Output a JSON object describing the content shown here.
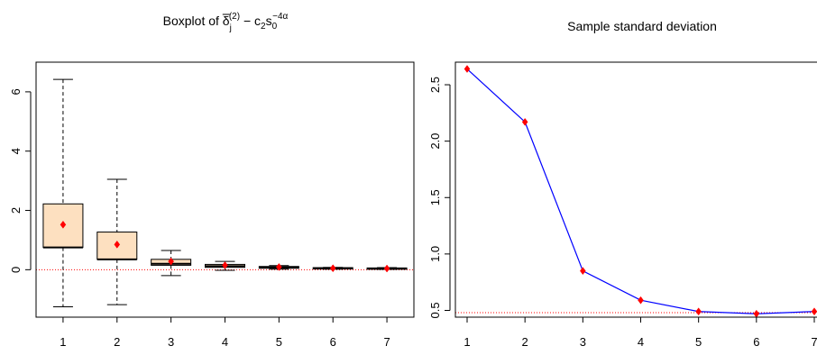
{
  "chart_data": [
    {
      "type": "box",
      "title": {
        "prefix": "Boxplot of ",
        "delta": "δ",
        "sub_j": "j",
        "sup_2": "(2)",
        "minus": " − c",
        "c_sub": "2",
        "s": "s",
        "s_sub": "0",
        "s_sup": "−4α"
      },
      "xlabel": "",
      "ylabel": "",
      "categories": [
        "1",
        "2",
        "3",
        "4",
        "5",
        "6",
        "7"
      ],
      "ylim": [
        -1.6,
        7.0
      ],
      "yticks": [
        0,
        2,
        4,
        6
      ],
      "boxes": [
        {
          "whisker_low": -1.25,
          "q1": 0.75,
          "median": 0.75,
          "q3": 2.22,
          "whisker_high": 6.42,
          "mean": 1.52
        },
        {
          "whisker_low": -1.18,
          "q1": 0.35,
          "median": 0.35,
          "q3": 1.27,
          "whisker_high": 3.05,
          "mean": 0.85
        },
        {
          "whisker_low": -0.2,
          "q1": 0.15,
          "median": 0.2,
          "q3": 0.35,
          "whisker_high": 0.65,
          "mean": 0.28
        },
        {
          "whisker_low": -0.02,
          "q1": 0.08,
          "median": 0.12,
          "q3": 0.18,
          "whisker_high": 0.28,
          "mean": 0.15
        },
        {
          "whisker_low": 0.02,
          "q1": 0.05,
          "median": 0.07,
          "q3": 0.11,
          "whisker_high": 0.14,
          "mean": 0.09
        },
        {
          "whisker_low": 0.02,
          "q1": 0.03,
          "median": 0.05,
          "q3": 0.07,
          "whisker_high": 0.08,
          "mean": 0.05
        },
        {
          "whisker_low": 0.01,
          "q1": 0.02,
          "median": 0.04,
          "q3": 0.06,
          "whisker_high": 0.07,
          "mean": 0.04
        }
      ],
      "reference_line": 0,
      "colors": {
        "box_fill": "#fde0c0",
        "mean_marker": "#ff0000",
        "reference_line": "#ff0000"
      }
    },
    {
      "type": "line",
      "title": "Sample standard deviation",
      "xlabel": "",
      "ylabel": "",
      "x": [
        1,
        2,
        3,
        4,
        5,
        6,
        7
      ],
      "y": [
        2.64,
        2.17,
        0.85,
        0.59,
        0.49,
        0.47,
        0.49
      ],
      "xlim": [
        0.97,
        7.0
      ],
      "ylim": [
        0.44,
        2.7
      ],
      "xticks": [
        1,
        2,
        3,
        4,
        5,
        6,
        7
      ],
      "yticks": [
        0.5,
        1.0,
        1.5,
        2.0,
        2.5
      ],
      "ytick_labels": [
        "0.5",
        "1.0",
        "1.5",
        "2.0",
        "2.5"
      ],
      "reference_line": 0.48,
      "colors": {
        "line": "#0000ff",
        "marker": "#ff0000",
        "reference_line": "#ff0000"
      }
    }
  ]
}
